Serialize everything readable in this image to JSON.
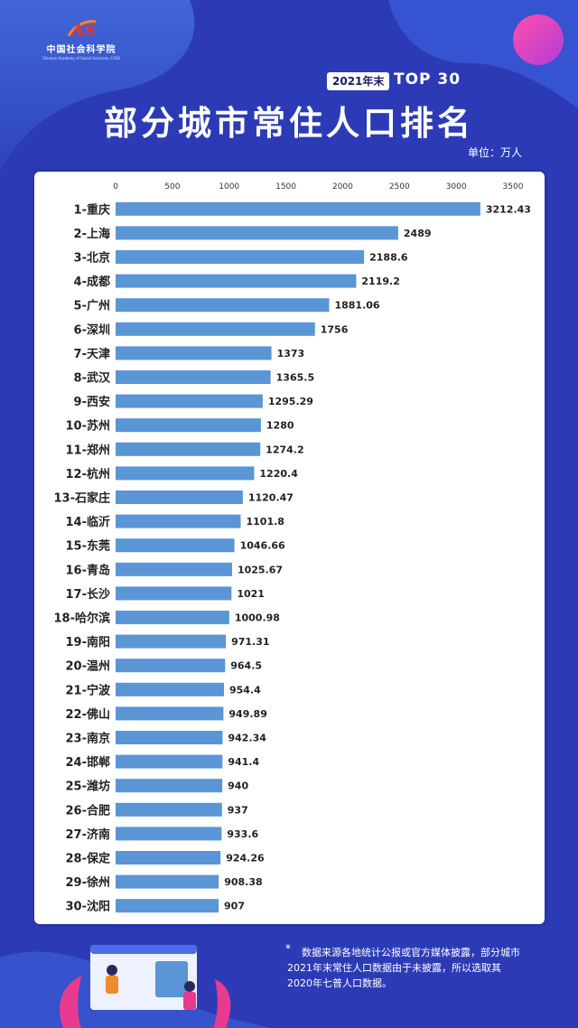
{
  "header": {
    "org_name": "中国社会科学院",
    "org_name_en": "Chinese Academy of Social Sciences, CASS",
    "logo_letters": "AS",
    "year_badge": "2021年末",
    "top_tag": "TOP 30",
    "title": "部分城市常住人口排名",
    "unit": "单位：万人"
  },
  "chart_data": {
    "type": "bar",
    "orientation": "horizontal",
    "x_ticks": [
      0,
      500,
      1000,
      1500,
      2000,
      2500,
      3000,
      3500
    ],
    "xlim": [
      0,
      3500
    ],
    "bar_color": "#5a95d5",
    "categories": [
      "1-重庆",
      "2-上海",
      "3-北京",
      "4-成都",
      "5-广州",
      "6-深圳",
      "7-天津",
      "8-武汉",
      "9-西安",
      "10-苏州",
      "11-郑州",
      "12-杭州",
      "13-石家庄",
      "14-临沂",
      "15-东莞",
      "16-青岛",
      "17-长沙",
      "18-哈尔滨",
      "19-南阳",
      "20-温州",
      "21-宁波",
      "22-佛山",
      "23-南京",
      "24-邯郸",
      "25-潍坊",
      "26-合肥",
      "27-济南",
      "28-保定",
      "29-徐州",
      "30-沈阳"
    ],
    "values": [
      3212.43,
      2489,
      2188.6,
      2119.2,
      1881.06,
      1756,
      1373,
      1365.5,
      1295.29,
      1280,
      1274.2,
      1220.4,
      1120.47,
      1101.8,
      1046.66,
      1025.67,
      1021,
      1000.98,
      971.31,
      964.5,
      954.4,
      949.89,
      942.34,
      941.4,
      940,
      937,
      933.6,
      924.26,
      908.38,
      907
    ],
    "value_labels": [
      "3212.43",
      "2489",
      "2188.6",
      "2119.2",
      "1881.06",
      "1756",
      "1373",
      "1365.5",
      "1295.29",
      "1280",
      "1274.2",
      "1220.4",
      "1120.47",
      "1101.8",
      "1046.66",
      "1025.67",
      "1021",
      "1000.98",
      "971.31",
      "964.5",
      "954.4",
      "949.89",
      "942.34",
      "941.4",
      "940",
      "937",
      "933.6",
      "924.26",
      "908.38",
      "907"
    ]
  },
  "footnote": {
    "star": "*",
    "text": "数据来源各地统计公报或官方媒体披露，部分城市2021年末常住人口数据由于未披露，所以选取其2020年七普人口数据。"
  },
  "colors": {
    "background": "#2c3bb5",
    "accent_orange": "#f08a2c",
    "accent_pink": "#e83a8e"
  }
}
